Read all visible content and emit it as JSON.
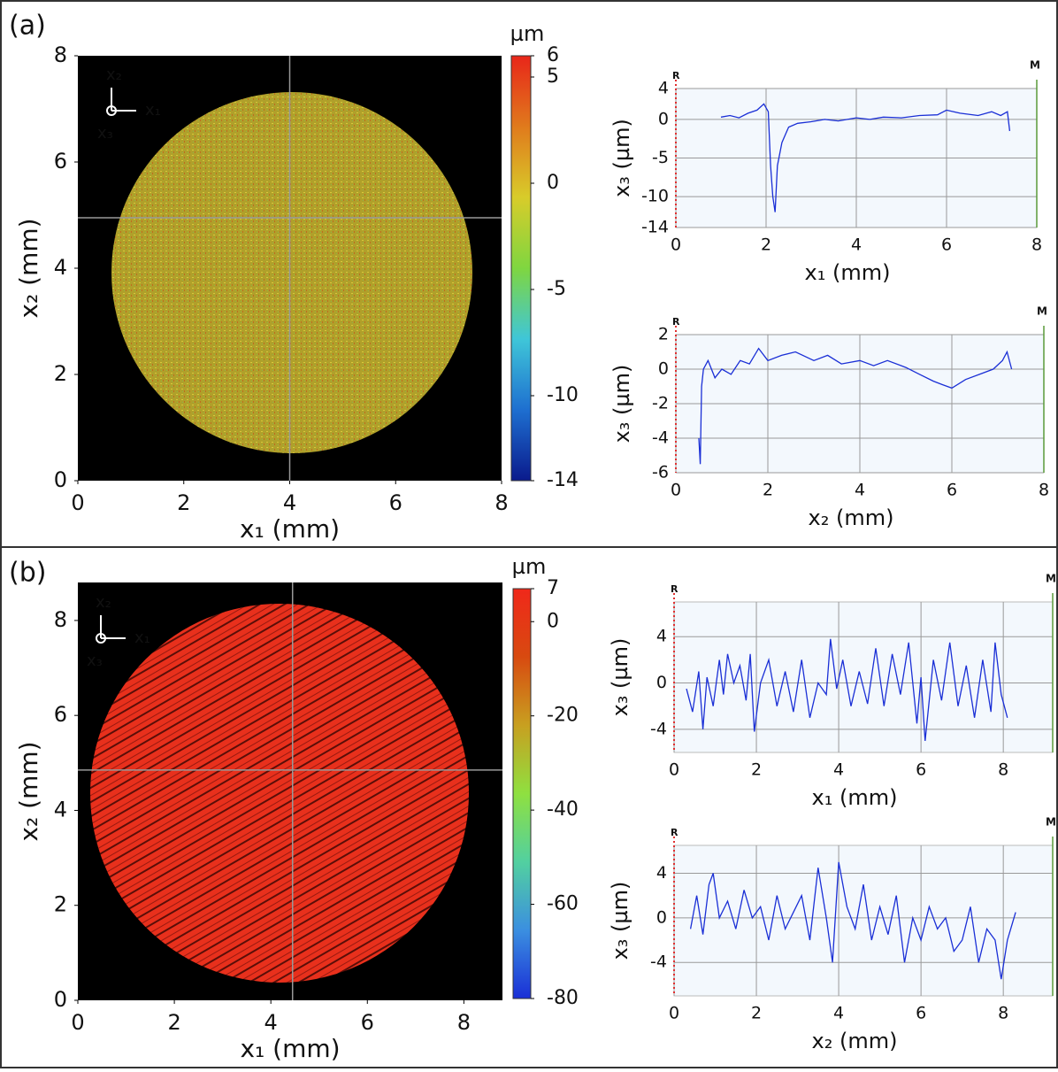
{
  "panel_labels": [
    "(a)",
    "(b)"
  ],
  "chart_data": [
    {
      "type": "heatmap",
      "xlabel": "x₁ (mm)",
      "ylabel": "x₂ (mm)",
      "xlim": [
        0,
        8
      ],
      "ylim": [
        0,
        8
      ],
      "xticks": [
        0,
        2,
        4,
        6,
        8
      ],
      "yticks": [
        0,
        2,
        4,
        6,
        8
      ],
      "crosshair": [
        4,
        4.95
      ],
      "axis_icon": [
        "x₁",
        "x₂",
        "x₃"
      ],
      "colorbar": {
        "label": "µm",
        "lim": [
          -14,
          6
        ],
        "ticks": [
          -14,
          -10,
          -5,
          0,
          5,
          6
        ],
        "colors": [
          "#0a1a8c",
          "#1e6fd0",
          "#3fc6d8",
          "#7fd640",
          "#d8cc2a",
          "#e07a1c",
          "#e8261a"
        ]
      }
    },
    {
      "type": "line",
      "xlabel": "x₁ (mm)",
      "ylabel": "x₃ (µm)",
      "corner_marks": [
        "R",
        "M"
      ],
      "color": "#1a2fd6",
      "xlim": [
        0,
        8
      ],
      "ylim": [
        -14,
        4
      ],
      "xticks": [
        0,
        2,
        4,
        6,
        8
      ],
      "yticks": [
        -14,
        -10,
        -5,
        0,
        4
      ],
      "x": [
        1.0,
        1.2,
        1.4,
        1.6,
        1.8,
        1.95,
        2.05,
        2.1,
        2.15,
        2.2,
        2.25,
        2.35,
        2.5,
        2.7,
        3.0,
        3.3,
        3.6,
        4.0,
        4.3,
        4.6,
        5.0,
        5.4,
        5.8,
        6.0,
        6.3,
        6.7,
        7.0,
        7.2,
        7.35,
        7.4
      ],
      "values": [
        0.3,
        0.5,
        0.2,
        0.8,
        1.2,
        2,
        1,
        -6,
        -10,
        -12,
        -6,
        -3,
        -1,
        -0.5,
        -0.3,
        0,
        -0.2,
        0.2,
        0,
        0.3,
        0.2,
        0.5,
        0.6,
        1.2,
        0.8,
        0.5,
        1,
        0.5,
        1,
        -1.5
      ]
    },
    {
      "type": "line",
      "xlabel": "x₂ (mm)",
      "ylabel": "x₃ (µm)",
      "corner_marks": [
        "R",
        "M"
      ],
      "color": "#1a2fd6",
      "xlim": [
        0,
        8
      ],
      "ylim": [
        -6,
        2
      ],
      "xticks": [
        0,
        2,
        4,
        6,
        8
      ],
      "yticks": [
        -6,
        -4,
        -2,
        0,
        2
      ],
      "x": [
        0.5,
        0.53,
        0.56,
        0.6,
        0.7,
        0.85,
        1.0,
        1.2,
        1.4,
        1.6,
        1.8,
        2.0,
        2.3,
        2.6,
        3.0,
        3.3,
        3.6,
        4.0,
        4.3,
        4.6,
        5.0,
        5.3,
        5.6,
        5.8,
        6.0,
        6.3,
        6.6,
        6.9,
        7.1,
        7.2,
        7.3
      ],
      "values": [
        -4,
        -5.5,
        -1,
        0,
        0.5,
        -0.5,
        0,
        -0.3,
        0.5,
        0.3,
        1.2,
        0.5,
        0.8,
        1.0,
        0.5,
        0.8,
        0.3,
        0.5,
        0.2,
        0.5,
        0.1,
        -0.3,
        -0.7,
        -0.9,
        -1.1,
        -0.6,
        -0.3,
        0,
        0.5,
        1,
        0
      ]
    },
    {
      "type": "heatmap",
      "xlabel": "x₁ (mm)",
      "ylabel": "x₂ (mm)",
      "xlim": [
        0,
        8.8
      ],
      "ylim": [
        0,
        8.8
      ],
      "xticks": [
        0,
        2,
        4,
        6,
        8
      ],
      "yticks": [
        0,
        2,
        4,
        6,
        8
      ],
      "crosshair": [
        4.45,
        4.85
      ],
      "axis_icon": [
        "x₁",
        "x₂",
        "x₃"
      ],
      "colorbar": {
        "label": "µm",
        "lim": [
          -80,
          7
        ],
        "ticks": [
          -80,
          -60,
          -40,
          -20,
          0,
          7
        ],
        "colors": [
          "#1a2fd6",
          "#3b8fe0",
          "#52d0a0",
          "#8fe040",
          "#c8a020",
          "#d84a10",
          "#f0281a"
        ]
      }
    },
    {
      "type": "line",
      "xlabel": "x₁ (mm)",
      "ylabel": "x₃ (µm)",
      "corner_marks": [
        "R",
        "M"
      ],
      "color": "#1a2fd6",
      "xlim": [
        0,
        9.2
      ],
      "ylim": [
        -6,
        7
      ],
      "xticks": [
        0,
        2,
        4,
        6,
        8
      ],
      "yticks": [
        -4,
        0,
        4
      ],
      "x": [
        0.3,
        0.45,
        0.6,
        0.7,
        0.8,
        0.95,
        1.1,
        1.2,
        1.3,
        1.45,
        1.6,
        1.75,
        1.85,
        1.95,
        2.1,
        2.3,
        2.5,
        2.7,
        2.9,
        3.1,
        3.3,
        3.5,
        3.7,
        3.8,
        3.95,
        4.1,
        4.3,
        4.5,
        4.7,
        4.9,
        5.1,
        5.3,
        5.5,
        5.7,
        5.9,
        6.0,
        6.1,
        6.3,
        6.5,
        6.7,
        6.9,
        7.1,
        7.3,
        7.5,
        7.7,
        7.8,
        7.95,
        8.1
      ],
      "values": [
        -0.5,
        -2.5,
        1,
        -4,
        0.5,
        -2,
        2,
        -1,
        2.5,
        0,
        1.5,
        -1.5,
        2.5,
        -4.2,
        0,
        2,
        -2,
        1,
        -2.5,
        2,
        -3,
        0,
        -1,
        3.8,
        -0.5,
        2,
        -2,
        1,
        -1.8,
        3,
        -2,
        2.5,
        -1,
        3.5,
        -3.5,
        0.5,
        -5,
        2,
        -1.5,
        3.5,
        -2,
        1.5,
        -3,
        2,
        -2.5,
        3.5,
        -1,
        -3
      ]
    },
    {
      "type": "line",
      "xlabel": "x₂ (mm)",
      "ylabel": "x₃ (µm)",
      "corner_marks": [
        "R",
        "M"
      ],
      "color": "#1a2fd6",
      "xlim": [
        0,
        9.2
      ],
      "ylim": [
        -7,
        6.5
      ],
      "xticks": [
        0,
        2,
        4,
        6,
        8
      ],
      "yticks": [
        -4,
        0,
        4
      ],
      "x": [
        0.4,
        0.55,
        0.7,
        0.85,
        0.95,
        1.1,
        1.3,
        1.5,
        1.7,
        1.9,
        2.1,
        2.3,
        2.5,
        2.7,
        2.9,
        3.1,
        3.3,
        3.5,
        3.7,
        3.85,
        4.0,
        4.2,
        4.4,
        4.6,
        4.8,
        5.0,
        5.2,
        5.4,
        5.6,
        5.8,
        6.0,
        6.2,
        6.4,
        6.6,
        6.8,
        7.0,
        7.2,
        7.4,
        7.6,
        7.8,
        7.95,
        8.1,
        8.3
      ],
      "values": [
        -1,
        2,
        -1.5,
        3,
        4,
        0,
        1.5,
        -1,
        2.5,
        0,
        1,
        -2,
        2,
        -1,
        0.5,
        2,
        -2,
        4.5,
        0,
        -4,
        5,
        1,
        -1,
        3,
        -2,
        1,
        -1.5,
        2,
        -4,
        0,
        -2,
        1,
        -1,
        0,
        -3,
        -2,
        1,
        -4,
        -1,
        -2,
        -5.5,
        -2,
        0.5
      ]
    }
  ]
}
